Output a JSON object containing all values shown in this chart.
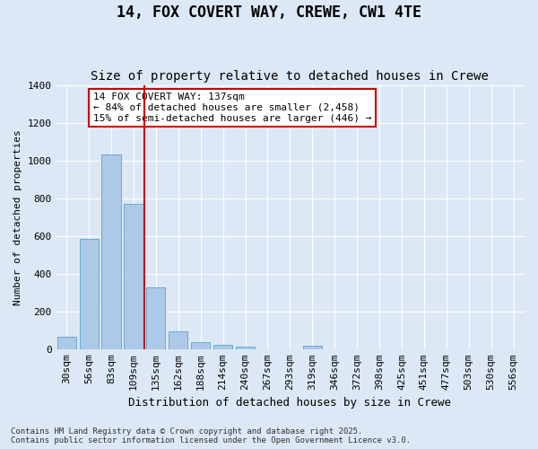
{
  "title": "14, FOX COVERT WAY, CREWE, CW1 4TE",
  "subtitle": "Size of property relative to detached houses in Crewe",
  "xlabel": "Distribution of detached houses by size in Crewe",
  "ylabel": "Number of detached properties",
  "categories": [
    "30sqm",
    "56sqm",
    "83sqm",
    "109sqm",
    "135sqm",
    "162sqm",
    "188sqm",
    "214sqm",
    "240sqm",
    "267sqm",
    "293sqm",
    "319sqm",
    "346sqm",
    "372sqm",
    "398sqm",
    "425sqm",
    "451sqm",
    "477sqm",
    "503sqm",
    "530sqm",
    "556sqm"
  ],
  "values": [
    65,
    585,
    1030,
    770,
    330,
    95,
    40,
    22,
    15,
    0,
    0,
    20,
    0,
    0,
    0,
    0,
    0,
    0,
    0,
    0,
    0
  ],
  "bar_color": "#adc9e8",
  "bar_edge_color": "#6aaad4",
  "vline_x": 3.5,
  "vline_color": "#cc0000",
  "annotation_text": "14 FOX COVERT WAY: 137sqm\n← 84% of detached houses are smaller (2,458)\n15% of semi-detached houses are larger (446) →",
  "annotation_box_color": "#cc0000",
  "annotation_facecolor": "white",
  "ylim": [
    0,
    1400
  ],
  "yticks": [
    0,
    200,
    400,
    600,
    800,
    1000,
    1200,
    1400
  ],
  "bg_color": "#dce8f5",
  "grid_color": "white",
  "footer_text": "Contains HM Land Registry data © Crown copyright and database right 2025.\nContains public sector information licensed under the Open Government Licence v3.0.",
  "title_fontsize": 12,
  "subtitle_fontsize": 10,
  "annot_fontsize": 8,
  "axis_fontsize": 8,
  "xlabel_fontsize": 9,
  "ylabel_fontsize": 8,
  "footer_fontsize": 6.5
}
